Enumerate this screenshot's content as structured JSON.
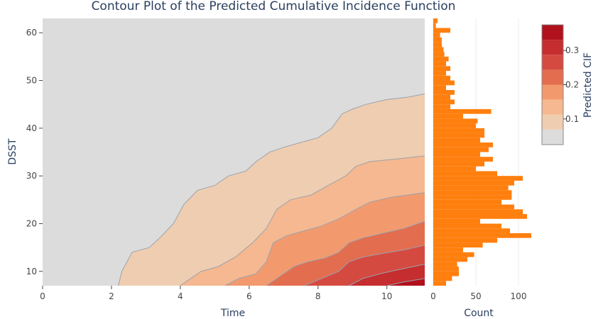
{
  "chart_data": [
    {
      "type": "contour",
      "title": "Contour Plot of the Predicted Cumulative Incidence Function",
      "xlabel": "Time",
      "ylabel": "DSST",
      "xlim": [
        0,
        11.1
      ],
      "ylim": [
        7,
        63
      ],
      "x_ticks": [
        "0",
        "2",
        "4",
        "6",
        "8",
        "10"
      ],
      "y_ticks": [
        "10",
        "20",
        "30",
        "40",
        "50",
        "60"
      ],
      "contour_levels": [
        0.05,
        0.1,
        0.15,
        0.2,
        0.25,
        0.3,
        0.35
      ],
      "contour_lines": [
        {
          "level": 0.05,
          "points": [
            [
              2.2,
              7
            ],
            [
              2.3,
              10
            ],
            [
              2.6,
              14
            ],
            [
              3.1,
              15
            ],
            [
              3.4,
              17
            ],
            [
              3.8,
              20
            ],
            [
              4.1,
              24
            ],
            [
              4.5,
              27
            ],
            [
              5.0,
              28
            ],
            [
              5.4,
              30
            ],
            [
              5.9,
              31
            ],
            [
              6.2,
              33
            ],
            [
              6.6,
              35
            ],
            [
              7.0,
              36
            ],
            [
              7.5,
              37
            ],
            [
              8.0,
              38
            ],
            [
              8.4,
              40
            ],
            [
              8.7,
              43
            ],
            [
              9.0,
              44
            ],
            [
              9.4,
              45
            ],
            [
              10.0,
              46
            ],
            [
              10.6,
              46.5
            ],
            [
              11.1,
              47.2
            ]
          ]
        },
        {
          "level": 0.1,
          "points": [
            [
              4.0,
              7
            ],
            [
              4.2,
              8
            ],
            [
              4.6,
              10
            ],
            [
              5.1,
              11
            ],
            [
              5.6,
              13
            ],
            [
              6.1,
              16
            ],
            [
              6.5,
              19
            ],
            [
              6.8,
              23
            ],
            [
              7.2,
              25
            ],
            [
              7.8,
              26
            ],
            [
              8.3,
              28
            ],
            [
              8.8,
              30
            ],
            [
              9.1,
              32
            ],
            [
              9.5,
              33
            ],
            [
              10.2,
              33.5
            ],
            [
              11.1,
              34.2
            ]
          ]
        },
        {
          "level": 0.15,
          "points": [
            [
              5.3,
              7
            ],
            [
              5.7,
              8.5
            ],
            [
              6.2,
              9.5
            ],
            [
              6.5,
              12
            ],
            [
              6.7,
              16
            ],
            [
              7.1,
              17.5
            ],
            [
              7.6,
              18.5
            ],
            [
              8.1,
              19.5
            ],
            [
              8.6,
              21
            ],
            [
              9.1,
              23
            ],
            [
              9.5,
              24.5
            ],
            [
              10.1,
              25.5
            ],
            [
              11.1,
              26.5
            ]
          ]
        },
        {
          "level": 0.2,
          "points": [
            [
              6.5,
              7
            ],
            [
              6.9,
              9
            ],
            [
              7.3,
              11
            ],
            [
              7.7,
              12
            ],
            [
              8.2,
              12.8
            ],
            [
              8.6,
              14
            ],
            [
              8.9,
              16
            ],
            [
              9.3,
              17
            ],
            [
              9.9,
              18
            ],
            [
              10.5,
              19
            ],
            [
              11.1,
              20.5
            ]
          ]
        },
        {
          "level": 0.25,
          "points": [
            [
              7.6,
              7
            ],
            [
              8.1,
              8.5
            ],
            [
              8.6,
              10
            ],
            [
              8.9,
              12
            ],
            [
              9.3,
              13
            ],
            [
              9.9,
              13.8
            ],
            [
              10.5,
              14.5
            ],
            [
              11.1,
              15.5
            ]
          ]
        },
        {
          "level": 0.3,
          "points": [
            [
              8.9,
              7
            ],
            [
              9.3,
              8.5
            ],
            [
              9.8,
              9.5
            ],
            [
              10.3,
              10.3
            ],
            [
              11.1,
              11.5
            ]
          ]
        },
        {
          "level": 0.35,
          "points": [
            [
              10.0,
              7
            ],
            [
              10.5,
              7.8
            ],
            [
              11.1,
              8.5
            ]
          ]
        }
      ],
      "colorbar": {
        "title": "Predicted CIF",
        "range": [
          0.025,
          0.375
        ],
        "ticks": [
          "0.1",
          "0.2",
          "0.3"
        ],
        "colors": [
          "#dcdcdc",
          "#efcdb0",
          "#f5b890",
          "#f29a6e",
          "#e36d4f",
          "#d54a40",
          "#c52d2f",
          "#b1111d"
        ]
      }
    },
    {
      "type": "histogram",
      "orientation": "horizontal",
      "xlabel": "Count",
      "x_ticks": [
        "0",
        "50",
        "100"
      ],
      "xlim": [
        0,
        125
      ],
      "ylim": [
        7,
        63
      ],
      "color": "#ff7f0e",
      "bin_width": 1,
      "bins_start": [
        7,
        8,
        9,
        10,
        11,
        12,
        13,
        14,
        15,
        16,
        17,
        18,
        19,
        20,
        21,
        22,
        23,
        24,
        25,
        26,
        27,
        28,
        29,
        30,
        31,
        32,
        33,
        34,
        35,
        36,
        37,
        38,
        39,
        40,
        41,
        42,
        43,
        44,
        45,
        46,
        47,
        48,
        49,
        50,
        51,
        52,
        53,
        54,
        55,
        56,
        57,
        58,
        59,
        60,
        61,
        62
      ],
      "counts": [
        15,
        22,
        30,
        30,
        28,
        40,
        48,
        35,
        58,
        75,
        115,
        90,
        80,
        55,
        110,
        105,
        95,
        80,
        92,
        92,
        88,
        95,
        105,
        75,
        50,
        60,
        70,
        55,
        65,
        70,
        55,
        60,
        60,
        50,
        52,
        35,
        68,
        20,
        25,
        20,
        25,
        15,
        25,
        20,
        15,
        20,
        15,
        18,
        13,
        12,
        10,
        10,
        8,
        20,
        3,
        5
      ]
    }
  ]
}
